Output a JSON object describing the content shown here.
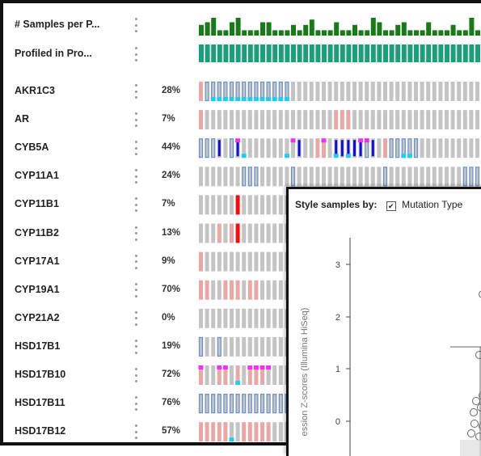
{
  "clinical_tracks": [
    {
      "label": "# Samples per P...",
      "type": "bars",
      "color": "#1a7a1a",
      "heights": [
        0.6,
        0.75,
        1,
        0.3,
        0.3,
        0.75,
        1,
        0.3,
        0.3,
        0.3,
        0.75,
        0.75,
        0.3,
        0.3,
        0.3,
        0.6,
        0.3,
        0.6,
        0.9,
        0.3,
        0.3,
        0.3,
        0.75,
        0.3,
        0.3,
        0.6,
        0.3,
        0.3,
        1,
        0.75,
        0.3,
        0.3,
        0.6,
        0.75,
        0.3,
        0.3,
        0.3,
        0.75,
        0.3,
        0.3,
        0.3,
        0.6,
        0.3,
        0.3,
        1,
        0.3,
        0.3
      ]
    },
    {
      "label": "Profiled in Pro...",
      "type": "solid",
      "color": "#1e9e7a"
    }
  ],
  "genes": [
    {
      "label": "AKR1C3",
      "pct": "28%",
      "pattern": "PBBBBBBBBBBBBBBGGGGGGGGGGGGGGGGGGGGGGGGGGGGGGGG",
      "mrna_low": [
        2,
        3,
        4,
        5,
        6,
        7,
        8,
        9,
        10,
        11,
        12,
        13,
        14
      ]
    },
    {
      "label": "AR",
      "pct": "7%",
      "pattern": "PGGGGGGGGGGGGGGGGGGGGGPPPGGGGGGGGGGGGGGGGGGGGGG",
      "mrna_low": []
    },
    {
      "label": "CYB5A",
      "pct": "44%",
      "pattern": "BBBDGBDGGGGGGGGSDGGPPGDDDDDBDGPBBBBBGGGGGGGGGGG",
      "mrna_low": [
        7,
        14,
        22,
        24,
        33,
        34
      ],
      "mrna_high": [
        6,
        15,
        20,
        26,
        27
      ]
    },
    {
      "label": "CYP11A1",
      "pct": "24%",
      "pattern": "GGGGGGGBBBGGGGGBGGGGGGGGGGGGGGBGGGGGGGGGGGGBBBB",
      "mrna_low": []
    },
    {
      "label": "CYP11B1",
      "pct": "7%",
      "pattern": "GGGGGGRGGGGGGGGGGGGGGGGGGGGGGGGGGGGGGGGGGGGGGGG",
      "mrna_low": []
    },
    {
      "label": "CYP11B2",
      "pct": "13%",
      "pattern": "GGGPGPRGGGGGGGGGGGGGGGGGGGGGGGGGGGGGGGGGGGGGGGG",
      "mrna_low": []
    },
    {
      "label": "CYP17A1",
      "pct": "9%",
      "pattern": "PGGGGGGGGGGGGGGGGGGGGGGGGGGGGGGGGGGGGGGGGGGGGGG",
      "mrna_low": []
    },
    {
      "label": "CYP19A1",
      "pct": "70%",
      "pattern": "PPGGPPPGPPGGGGGGGGGGGGGGGGGGGGGGGGGGGGGGGGGGGGG",
      "mrna_low": []
    },
    {
      "label": "CYP21A2",
      "pct": "0%",
      "pattern": "GGGGGGGGGGGGGGGGGGGGGGGGGGGGGGGGGGGGGGGGGGGGGGG",
      "mrna_low": []
    },
    {
      "label": "HSD17B1",
      "pct": "19%",
      "pattern": "BGGBGGGGGGGGGGGGGGGGGGGGGGGGGGGGGGGGGGGGGGGGGGG",
      "mrna_low": []
    },
    {
      "label": "HSD17B10",
      "pct": "72%",
      "pattern": "PGGPPGPGPPPGGGGGGGGGGGGGGGGGGGGGGGGGGGGGGGGGGGG",
      "mrna_low": [
        6
      ],
      "mrna_high": [
        0,
        3,
        4,
        8,
        9,
        10,
        11
      ]
    },
    {
      "label": "HSD17B11",
      "pct": "76%",
      "pattern": "BBBBBBBBBBBBBBBBBBBBBBBBBBBBBBBBBBBBBBBBBBBBBBB",
      "mrna_low": []
    },
    {
      "label": "HSD17B12",
      "pct": "57%",
      "pattern": "PPPPPGGPPPPPGGGGGGGGGGGGGGGGGGGGGGGGGGGGGGGGGGG",
      "mrna_low": [
        5
      ]
    }
  ],
  "colors": {
    "grey": "#c4c4c4",
    "pink": "#e8a8a8",
    "red": "#ee1111",
    "blue_outline": "#6a8fc8",
    "dark_blue": "#1010cc",
    "cyan": "#22ccee",
    "magenta": "#ee33ee"
  },
  "panel": {
    "style_label": "Style samples by:",
    "mutation_type_label": "Mutation Type",
    "y_axis_label": "ession Z-scores (Illumina HiSeq)",
    "y_ticks": [
      "3",
      "2",
      "1",
      "0"
    ]
  }
}
